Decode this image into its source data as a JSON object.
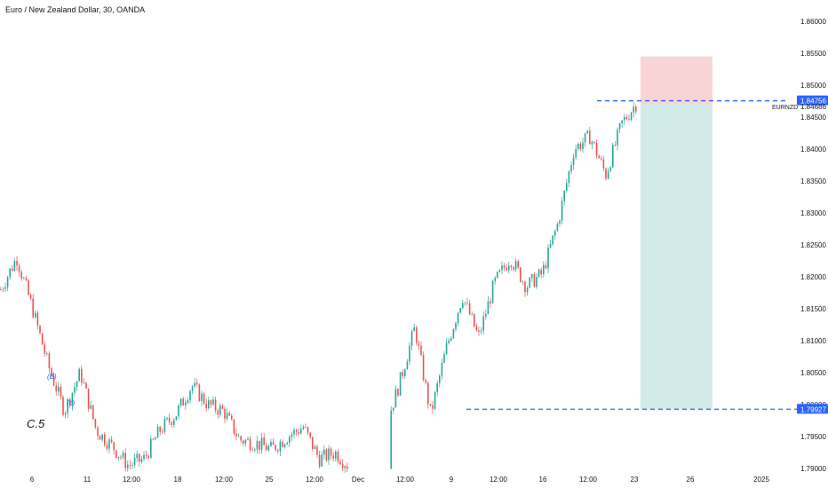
{
  "header": {
    "title": "Euro / New Zealand Dollar, 30, OANDA"
  },
  "price_axis": {
    "ticks": [
      "1.86000",
      "1.85500",
      "1.85000",
      "1.84500",
      "1.84000",
      "1.83500",
      "1.83000",
      "1.82500",
      "1.82000",
      "1.81500",
      "1.81000",
      "1.80500",
      "1.80000",
      "1.79500",
      "1.79000"
    ]
  },
  "time_axis": {
    "ticks": [
      "6",
      "11",
      "12:00",
      "18",
      "12:00",
      "25",
      "12:00",
      "Dec",
      "12:00",
      "9",
      "12:00",
      "16",
      "12:00",
      "23",
      "26",
      "2025"
    ]
  },
  "labels": {
    "current_price": "1.84756",
    "symbol_tag": "EURNZD",
    "symbol_price": "1.84686",
    "support_price": "1.79927"
  },
  "annotations": {
    "wave_c5": "C.5",
    "wave_b": "(B)",
    "wave_c": "(c)"
  },
  "colors": {
    "up": "#26a69a",
    "down": "#ef5350",
    "line": "#2962ff",
    "stop_zone": "#f9d4d6",
    "target_zone": "#d1ece8"
  },
  "chart_data": {
    "type": "candlestick",
    "title": "Euro / New Zealand Dollar, 30, OANDA",
    "symbol": "EURNZD",
    "interval": "30",
    "ylim": [
      1.79,
      1.86
    ],
    "path": [
      [
        "6",
        1.818
      ],
      [
        "",
        1.823
      ],
      [
        "",
        1.815
      ],
      [
        "",
        1.806
      ],
      [
        "",
        1.799
      ],
      [
        "",
        1.805
      ],
      [
        "",
        1.796
      ],
      [
        "11",
        1.7935
      ],
      [
        "",
        1.7905
      ],
      [
        "12:00",
        1.7915
      ],
      [
        "",
        1.796
      ],
      [
        "",
        1.7985
      ],
      [
        "18",
        1.803
      ],
      [
        "",
        1.8
      ],
      [
        "",
        1.799
      ],
      [
        "12:00",
        1.7945
      ],
      [
        "",
        1.794
      ],
      [
        "25",
        1.793
      ],
      [
        "",
        1.795
      ],
      [
        "",
        1.7965
      ],
      [
        "12:00",
        1.7915
      ],
      [
        "",
        1.7925
      ],
      [
        "Dec",
        1.79
      ],
      [
        "",
        1.789
      ],
      [
        "12:00",
        1.7955
      ],
      [
        "",
        1.803
      ],
      [
        "",
        1.812
      ],
      [
        "9",
        1.7985
      ],
      [
        "",
        1.809
      ],
      [
        "12:00",
        1.817
      ],
      [
        "",
        1.8105
      ],
      [
        "",
        1.819
      ],
      [
        "16",
        1.823
      ],
      [
        "",
        1.8185
      ],
      [
        "",
        1.8205
      ],
      [
        "12:00",
        1.8285
      ],
      [
        "",
        1.84
      ],
      [
        "",
        1.842
      ],
      [
        "",
        1.836
      ],
      [
        "",
        1.844
      ],
      [
        "23",
        1.8475
      ]
    ],
    "current_price": 1.84756,
    "position": {
      "type": "short",
      "entry": 1.847,
      "stop": 1.8545,
      "target": 1.7993
    },
    "horizontal_lines": [
      1.84756,
      1.79927
    ]
  }
}
